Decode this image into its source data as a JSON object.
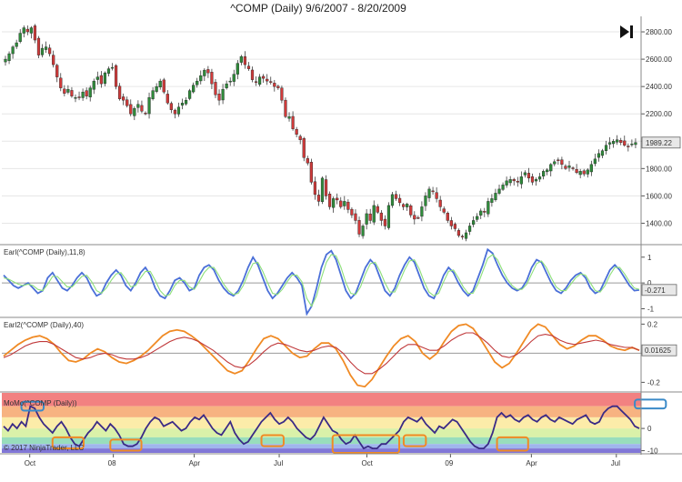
{
  "chart_data": [
    {
      "type": "candlestick",
      "title": "^COMP (Daily)  9/6/2007 - 8/20/2009",
      "price_label": "1989.22",
      "ylim": [
        1250,
        2900
      ],
      "yticks": [
        1400,
        1600,
        1800,
        2000,
        2200,
        2400,
        2600,
        2800
      ],
      "ytick_labels": [
        "1400.00",
        "1600.00",
        "1800.00",
        "2000.00",
        "2200.00",
        "2400.00",
        "2600.00",
        "2800.00"
      ],
      "xticks": [
        {
          "label": "Oct",
          "index": 18
        },
        {
          "label": "08",
          "index": 80
        },
        {
          "label": "Apr",
          "index": 140
        },
        {
          "label": "Jul",
          "index": 203
        },
        {
          "label": "Oct",
          "index": 268
        },
        {
          "label": "09",
          "index": 330
        },
        {
          "label": "Apr",
          "index": 390
        },
        {
          "label": "Jul",
          "index": 453
        }
      ],
      "closes": [
        2600,
        2640,
        2690,
        2720,
        2790,
        2830,
        2800,
        2830,
        2740,
        2630,
        2680,
        2690,
        2640,
        2560,
        2470,
        2390,
        2350,
        2380,
        2330,
        2320,
        2320,
        2360,
        2330,
        2390,
        2440,
        2470,
        2420,
        2500,
        2530,
        2540,
        2400,
        2310,
        2300,
        2260,
        2200,
        2240,
        2270,
        2220,
        2200,
        2320,
        2370,
        2400,
        2440,
        2360,
        2280,
        2230,
        2200,
        2250,
        2280,
        2300,
        2370,
        2410,
        2440,
        2480,
        2520,
        2500,
        2420,
        2340,
        2300,
        2380,
        2420,
        2440,
        2490,
        2570,
        2620,
        2560,
        2530,
        2450,
        2430,
        2470,
        2460,
        2440,
        2430,
        2400,
        2390,
        2300,
        2180,
        2180,
        2090,
        2050,
        2010,
        1880,
        1840,
        1700,
        1610,
        1560,
        1730,
        1600,
        1520,
        1580,
        1570,
        1520,
        1560,
        1500,
        1460,
        1420,
        1320,
        1380,
        1470,
        1420,
        1530,
        1480,
        1420,
        1380,
        1530,
        1610,
        1580,
        1550,
        1520,
        1540,
        1460,
        1430,
        1440,
        1520,
        1600,
        1650,
        1630,
        1580,
        1520,
        1480,
        1420,
        1380,
        1360,
        1310,
        1300,
        1330,
        1380,
        1420,
        1450,
        1490,
        1480,
        1560,
        1580,
        1620,
        1650,
        1680,
        1710,
        1720,
        1710,
        1700,
        1740,
        1770,
        1730,
        1700,
        1720,
        1740,
        1780,
        1790,
        1830,
        1850,
        1860,
        1830,
        1800,
        1820,
        1800,
        1770,
        1780,
        1760,
        1790,
        1830,
        1870,
        1910,
        1930,
        1970,
        1990,
        2000,
        2010,
        1990,
        1970,
        1960,
        1980,
        1990
      ]
    },
    {
      "type": "line",
      "label": "Earl(^COMP (Daily),11,8)",
      "value_label": "-0.271",
      "ylim": [
        -1.3,
        1.45
      ],
      "yticks": [
        1,
        0,
        -1
      ],
      "ytick_labels": [
        "1",
        "0",
        "-1"
      ],
      "zero_line": 0,
      "series": [
        {
          "color": "#4a6fd8",
          "values": [
            0.3,
            0.1,
            -0.1,
            -0.2,
            -0.1,
            0.0,
            -0.2,
            -0.4,
            -0.3,
            0.2,
            0.4,
            0.1,
            -0.2,
            -0.3,
            -0.1,
            0.2,
            0.4,
            0.2,
            -0.2,
            -0.5,
            -0.4,
            0.0,
            0.3,
            0.5,
            0.3,
            -0.1,
            -0.3,
            0.0,
            0.4,
            0.6,
            0.3,
            -0.2,
            -0.5,
            -0.6,
            -0.3,
            0.1,
            0.2,
            0.0,
            -0.3,
            -0.2,
            0.3,
            0.6,
            0.7,
            0.5,
            0.1,
            -0.2,
            -0.4,
            -0.5,
            -0.3,
            0.1,
            0.6,
            1.0,
            0.7,
            0.2,
            -0.3,
            -0.6,
            -0.4,
            -0.1,
            0.2,
            0.4,
            0.2,
            -0.1,
            -1.2,
            -0.9,
            -0.2,
            0.6,
            1.1,
            1.25,
            0.9,
            0.3,
            -0.3,
            -0.6,
            -0.4,
            0.1,
            0.6,
            0.9,
            0.7,
            0.2,
            -0.3,
            -0.5,
            -0.2,
            0.3,
            0.7,
            1.0,
            0.8,
            0.3,
            -0.2,
            -0.5,
            -0.6,
            -0.2,
            0.3,
            0.6,
            0.4,
            0.0,
            -0.3,
            -0.5,
            -0.3,
            0.2,
            0.7,
            1.3,
            1.15,
            0.7,
            0.3,
            0.0,
            -0.2,
            -0.3,
            -0.2,
            0.1,
            0.6,
            0.9,
            0.8,
            0.4,
            0.0,
            -0.3,
            -0.4,
            -0.2,
            0.1,
            0.3,
            0.4,
            0.2,
            -0.2,
            -0.4,
            -0.3,
            0.1,
            0.5,
            0.7,
            0.5,
            0.2,
            -0.1,
            -0.3,
            -0.271
          ]
        },
        {
          "color": "#8ee07a",
          "values": [
            0.2,
            0.15,
            0.05,
            -0.05,
            -0.1,
            -0.05,
            -0.1,
            -0.25,
            -0.3,
            -0.05,
            0.25,
            0.25,
            0.05,
            -0.15,
            -0.15,
            0.05,
            0.25,
            0.3,
            0.05,
            -0.3,
            -0.4,
            -0.2,
            0.1,
            0.35,
            0.4,
            0.15,
            -0.15,
            -0.1,
            0.2,
            0.45,
            0.45,
            0.1,
            -0.3,
            -0.5,
            -0.45,
            -0.1,
            0.1,
            0.1,
            -0.15,
            -0.25,
            0.05,
            0.4,
            0.6,
            0.6,
            0.3,
            -0.05,
            -0.3,
            -0.45,
            -0.4,
            -0.1,
            0.35,
            0.75,
            0.8,
            0.45,
            0.0,
            -0.4,
            -0.45,
            -0.25,
            0.05,
            0.3,
            0.3,
            0.05,
            -0.6,
            -0.9,
            -0.5,
            0.2,
            0.8,
            1.1,
            1.05,
            0.6,
            0.0,
            -0.4,
            -0.45,
            -0.15,
            0.35,
            0.75,
            0.8,
            0.45,
            0.0,
            -0.35,
            -0.35,
            0.05,
            0.5,
            0.85,
            0.9,
            0.55,
            0.05,
            -0.35,
            -0.5,
            -0.4,
            0.05,
            0.45,
            0.5,
            0.2,
            -0.15,
            -0.4,
            -0.4,
            -0.05,
            0.45,
            0.95,
            1.1,
            0.9,
            0.5,
            0.15,
            -0.1,
            -0.25,
            -0.25,
            -0.05,
            0.35,
            0.75,
            0.85,
            0.6,
            0.2,
            -0.15,
            -0.3,
            -0.3,
            -0.05,
            0.2,
            0.35,
            0.3,
            0.0,
            -0.3,
            -0.35,
            -0.1,
            0.3,
            0.6,
            0.6,
            0.35,
            0.05,
            -0.2,
            -0.25
          ]
        }
      ]
    },
    {
      "type": "line",
      "label": "Earl2(^COMP (Daily),40)",
      "value_label": "0.01625",
      "ylim": [
        -0.26,
        0.24
      ],
      "yticks": [
        0.2,
        0,
        -0.2
      ],
      "ytick_labels": [
        "0.2",
        "0",
        "-0.2"
      ],
      "zero_line": 0,
      "series": [
        {
          "color": "#f08a24",
          "values": [
            -0.02,
            0.02,
            0.06,
            0.09,
            0.11,
            0.12,
            0.1,
            0.06,
            0.0,
            -0.05,
            -0.06,
            -0.04,
            0.0,
            0.03,
            0.01,
            -0.03,
            -0.06,
            -0.07,
            -0.05,
            -0.02,
            0.02,
            0.07,
            0.12,
            0.15,
            0.16,
            0.15,
            0.12,
            0.08,
            0.03,
            -0.02,
            -0.07,
            -0.12,
            -0.14,
            -0.12,
            -0.05,
            0.03,
            0.1,
            0.12,
            0.1,
            0.05,
            0.0,
            -0.03,
            -0.02,
            0.03,
            0.07,
            0.07,
            0.03,
            -0.05,
            -0.15,
            -0.22,
            -0.23,
            -0.18,
            -0.1,
            -0.02,
            0.05,
            0.1,
            0.12,
            0.08,
            0.0,
            -0.04,
            0.0,
            0.08,
            0.15,
            0.19,
            0.2,
            0.17,
            0.1,
            0.02,
            -0.06,
            -0.1,
            -0.07,
            0.0,
            0.08,
            0.16,
            0.2,
            0.18,
            0.12,
            0.06,
            0.03,
            0.05,
            0.09,
            0.12,
            0.12,
            0.09,
            0.05,
            0.03,
            0.02,
            0.04,
            0.02
          ]
        },
        {
          "color": "#c0393b",
          "values": [
            -0.03,
            -0.01,
            0.02,
            0.05,
            0.07,
            0.08,
            0.08,
            0.06,
            0.03,
            0.0,
            -0.03,
            -0.04,
            -0.03,
            -0.01,
            0.0,
            -0.01,
            -0.03,
            -0.04,
            -0.04,
            -0.03,
            -0.01,
            0.02,
            0.05,
            0.08,
            0.1,
            0.11,
            0.1,
            0.08,
            0.05,
            0.02,
            -0.02,
            -0.06,
            -0.09,
            -0.1,
            -0.08,
            -0.04,
            0.01,
            0.05,
            0.07,
            0.06,
            0.04,
            0.02,
            0.01,
            0.02,
            0.04,
            0.05,
            0.04,
            0.0,
            -0.06,
            -0.11,
            -0.14,
            -0.14,
            -0.11,
            -0.07,
            -0.02,
            0.03,
            0.06,
            0.06,
            0.04,
            0.02,
            0.02,
            0.05,
            0.09,
            0.12,
            0.14,
            0.14,
            0.11,
            0.07,
            0.02,
            -0.02,
            -0.03,
            -0.01,
            0.03,
            0.08,
            0.12,
            0.13,
            0.12,
            0.09,
            0.07,
            0.06,
            0.07,
            0.08,
            0.09,
            0.08,
            0.06,
            0.05,
            0.04,
            0.04,
            0.02
          ]
        }
      ]
    },
    {
      "type": "line",
      "label": "MoMo(^COMP (Daily))",
      "copyright": "© 2017 NinjaTrader, LLC",
      "ylim": [
        -11,
        16
      ],
      "yticks": [
        0,
        -10
      ],
      "ytick_labels": [
        "0",
        "-10"
      ],
      "bands": [
        {
          "from": 10,
          "to": 16,
          "color": "#f06b6b"
        },
        {
          "from": 5,
          "to": 10,
          "color": "#f6a66b"
        },
        {
          "from": 0,
          "to": 5,
          "color": "#fbe99a"
        },
        {
          "from": -4,
          "to": 0,
          "color": "#d4ef9a"
        },
        {
          "from": -7,
          "to": -4,
          "color": "#86d7b0"
        },
        {
          "from": -9,
          "to": -7,
          "color": "#8fa8ea"
        },
        {
          "from": -11,
          "to": -9,
          "color": "#6b5fd0"
        }
      ],
      "series": [
        {
          "color": "#3a2a86",
          "values": [
            1,
            -1,
            2,
            0,
            3,
            1,
            10,
            9,
            5,
            2,
            0,
            -2,
            1,
            3,
            0,
            -4,
            -7,
            -8,
            -5,
            -2,
            0,
            3,
            1,
            -1,
            2,
            0,
            -3,
            -7,
            -8,
            -8,
            -7,
            -4,
            0,
            3,
            5,
            4,
            1,
            2,
            3,
            1,
            -1,
            0,
            3,
            5,
            4,
            6,
            3,
            0,
            -2,
            -3,
            0,
            3,
            -2,
            -5,
            -7,
            -6,
            -3,
            0,
            3,
            5,
            7,
            4,
            2,
            3,
            5,
            3,
            0,
            -2,
            -4,
            -5,
            -3,
            1,
            5,
            2,
            -1,
            -2,
            -5,
            -7,
            -6,
            -3,
            -6,
            -9,
            -8,
            -9,
            -9,
            -7,
            -7,
            -5,
            -3,
            -1,
            3,
            5,
            4,
            3,
            5,
            2,
            0,
            -2,
            1,
            0,
            2,
            4,
            3,
            0,
            -3,
            -6,
            -8,
            -9,
            -9,
            -7,
            -2,
            5,
            7,
            5,
            6,
            4,
            3,
            5,
            6,
            4,
            3,
            5,
            6,
            4,
            3,
            5,
            4,
            3,
            2,
            4,
            5,
            6,
            3,
            2,
            3,
            7,
            9,
            10,
            10,
            8,
            6,
            4,
            1,
            0
          ]
        }
      ],
      "highlights": [
        {
          "x0": 4,
          "x1": 9,
          "y0": 8,
          "y1": 12,
          "color": "#3a8ac8"
        },
        {
          "x0": 11,
          "x1": 18,
          "y0": -9,
          "y1": -4,
          "color": "#f08a24"
        },
        {
          "x0": 24,
          "x1": 31,
          "y0": -10,
          "y1": -5,
          "color": "#f08a24"
        },
        {
          "x0": 58,
          "x1": 63,
          "y0": -8,
          "y1": -3,
          "color": "#f08a24"
        },
        {
          "x0": 74,
          "x1": 89,
          "y0": -11,
          "y1": -3,
          "color": "#f08a24"
        },
        {
          "x0": 90,
          "x1": 95,
          "y0": -8,
          "y1": -3,
          "color": "#f08a24"
        },
        {
          "x0": 111,
          "x1": 118,
          "y0": -10,
          "y1": -4,
          "color": "#f08a24"
        },
        {
          "x0": 142,
          "x1": 149,
          "y0": 9,
          "y1": 13,
          "color": "#3a8ac8"
        }
      ]
    }
  ]
}
